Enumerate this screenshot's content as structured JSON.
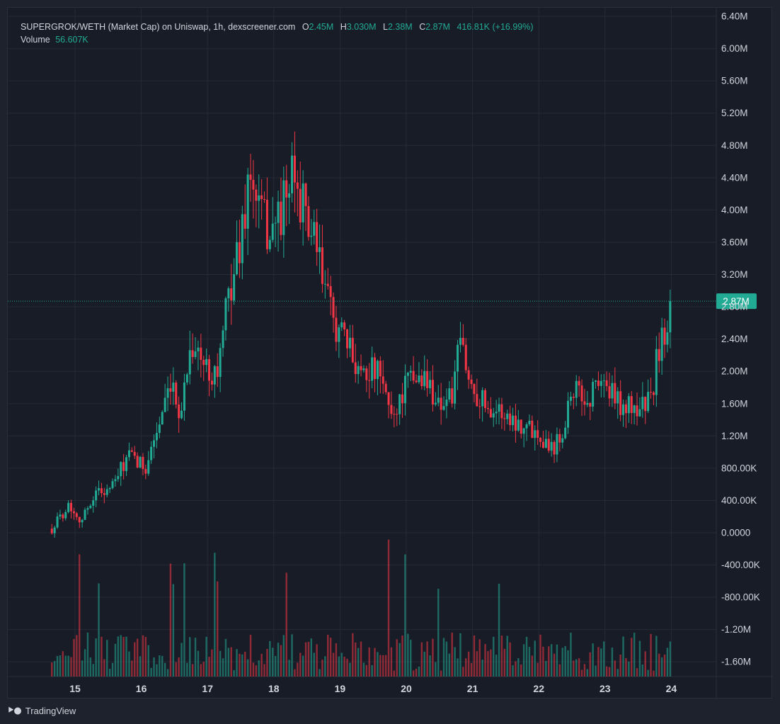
{
  "legend": {
    "symbol": "SUPERGROK/WETH (Market Cap) on Uniswap, 1h, dexscreener.com",
    "o_label": "O",
    "o_value": "2.45M",
    "h_label": "H",
    "h_value": "3.030M",
    "l_label": "L",
    "l_value": "2.38M",
    "c_label": "C",
    "c_value": "2.87M",
    "change": "416.81K (+16.99%)",
    "volume_label": "Volume",
    "volume_value": "56.607K"
  },
  "footer": {
    "logo_icon": "tradingview-logo-icon",
    "brand": "TradingView"
  },
  "colors": {
    "up": "#22ab94",
    "down": "#f23645",
    "background": "#181c27",
    "grid": "#262a36",
    "axis_text": "#d1d4dc"
  },
  "chart_data": {
    "type": "candlestick",
    "title": "SUPERGROK/WETH (Market Cap) on Uniswap, 1h, dexscreener.com",
    "interval": "1h",
    "x_ticks": [
      "15",
      "16",
      "17",
      "18",
      "19",
      "20",
      "21",
      "22",
      "23",
      "24"
    ],
    "y_ticks": [
      "6.40M",
      "6.00M",
      "5.60M",
      "5.20M",
      "4.80M",
      "4.40M",
      "4.00M",
      "3.60M",
      "3.20M",
      "2.80M",
      "2.40M",
      "2.00M",
      "1.60M",
      "1.20M",
      "800.00K",
      "400.00K",
      "0.0000",
      "-400.00K",
      "-800.00K",
      "-1.20M",
      "-1.60M"
    ],
    "y_range": [
      -1.78,
      6.5
    ],
    "x_range_days": [
      14.4,
      24.4
    ],
    "last_price": 2.87,
    "last_price_label": "2.87M",
    "grid": true,
    "close_anchors": [
      [
        14.65,
        0.05
      ],
      [
        14.9,
        0.35
      ],
      [
        15.1,
        0.15
      ],
      [
        15.3,
        0.5
      ],
      [
        15.55,
        0.55
      ],
      [
        15.8,
        0.95
      ],
      [
        16.05,
        0.8
      ],
      [
        16.25,
        1.3
      ],
      [
        16.45,
        1.75
      ],
      [
        16.6,
        1.5
      ],
      [
        16.75,
        2.4
      ],
      [
        16.95,
        2.05
      ],
      [
        17.15,
        2.0
      ],
      [
        17.35,
        3.1
      ],
      [
        17.5,
        3.6
      ],
      [
        17.62,
        4.4
      ],
      [
        17.75,
        4.1
      ],
      [
        17.92,
        3.7
      ],
      [
        18.1,
        3.95
      ],
      [
        18.3,
        4.4
      ],
      [
        18.5,
        3.9
      ],
      [
        18.7,
        3.3
      ],
      [
        18.85,
        2.75
      ],
      [
        19.1,
        2.3
      ],
      [
        19.3,
        2.05
      ],
      [
        19.55,
        2.0
      ],
      [
        19.8,
        1.45
      ],
      [
        20.0,
        1.85
      ],
      [
        20.25,
        1.95
      ],
      [
        20.5,
        1.6
      ],
      [
        20.7,
        1.7
      ],
      [
        20.82,
        2.4
      ],
      [
        20.95,
        1.85
      ],
      [
        21.2,
        1.6
      ],
      [
        21.5,
        1.45
      ],
      [
        21.75,
        1.35
      ],
      [
        22.0,
        1.25
      ],
      [
        22.2,
        1.05
      ],
      [
        22.35,
        1.25
      ],
      [
        22.5,
        1.8
      ],
      [
        22.75,
        1.6
      ],
      [
        22.9,
        1.95
      ],
      [
        23.1,
        1.7
      ],
      [
        23.3,
        1.55
      ],
      [
        23.5,
        1.55
      ],
      [
        23.7,
        1.65
      ],
      [
        23.8,
        2.25
      ],
      [
        23.9,
        2.5
      ],
      [
        24.0,
        2.87
      ]
    ],
    "volume_axis": "overlaid on same pane, scaled to bottom region"
  }
}
